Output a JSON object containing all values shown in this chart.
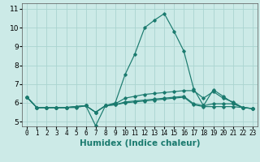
{
  "xlabel": "Humidex (Indice chaleur)",
  "xlim": [
    -0.5,
    23.5
  ],
  "ylim": [
    4.75,
    11.3
  ],
  "yticks": [
    5,
    6,
    7,
    8,
    9,
    10,
    11
  ],
  "xticks": [
    0,
    1,
    2,
    3,
    4,
    5,
    6,
    7,
    8,
    9,
    10,
    11,
    12,
    13,
    14,
    15,
    16,
    17,
    18,
    19,
    20,
    21,
    22,
    23
  ],
  "background_color": "#cceae7",
  "grid_color": "#aad4d0",
  "line_color": "#1a7a6e",
  "series": [
    [
      6.3,
      5.75,
      5.75,
      5.75,
      5.75,
      5.8,
      5.85,
      4.78,
      5.85,
      6.0,
      7.5,
      8.6,
      10.0,
      10.4,
      10.75,
      9.8,
      8.75,
      6.75,
      5.85,
      6.7,
      6.35,
      6.0,
      5.75,
      5.7
    ],
    [
      6.3,
      5.75,
      5.75,
      5.75,
      5.75,
      5.8,
      5.85,
      5.5,
      5.85,
      5.95,
      6.25,
      6.35,
      6.45,
      6.5,
      6.55,
      6.6,
      6.65,
      6.65,
      6.25,
      6.6,
      6.25,
      6.05,
      5.75,
      5.7
    ],
    [
      6.3,
      5.75,
      5.75,
      5.75,
      5.75,
      5.8,
      5.85,
      5.5,
      5.85,
      5.9,
      6.05,
      6.1,
      6.15,
      6.2,
      6.25,
      6.3,
      6.35,
      5.95,
      5.85,
      5.95,
      5.95,
      5.95,
      5.75,
      5.7
    ],
    [
      6.3,
      5.75,
      5.75,
      5.75,
      5.75,
      5.75,
      5.85,
      5.5,
      5.85,
      5.9,
      6.0,
      6.05,
      6.1,
      6.15,
      6.2,
      6.25,
      6.3,
      5.9,
      5.8,
      5.8,
      5.8,
      5.8,
      5.75,
      5.7
    ]
  ]
}
